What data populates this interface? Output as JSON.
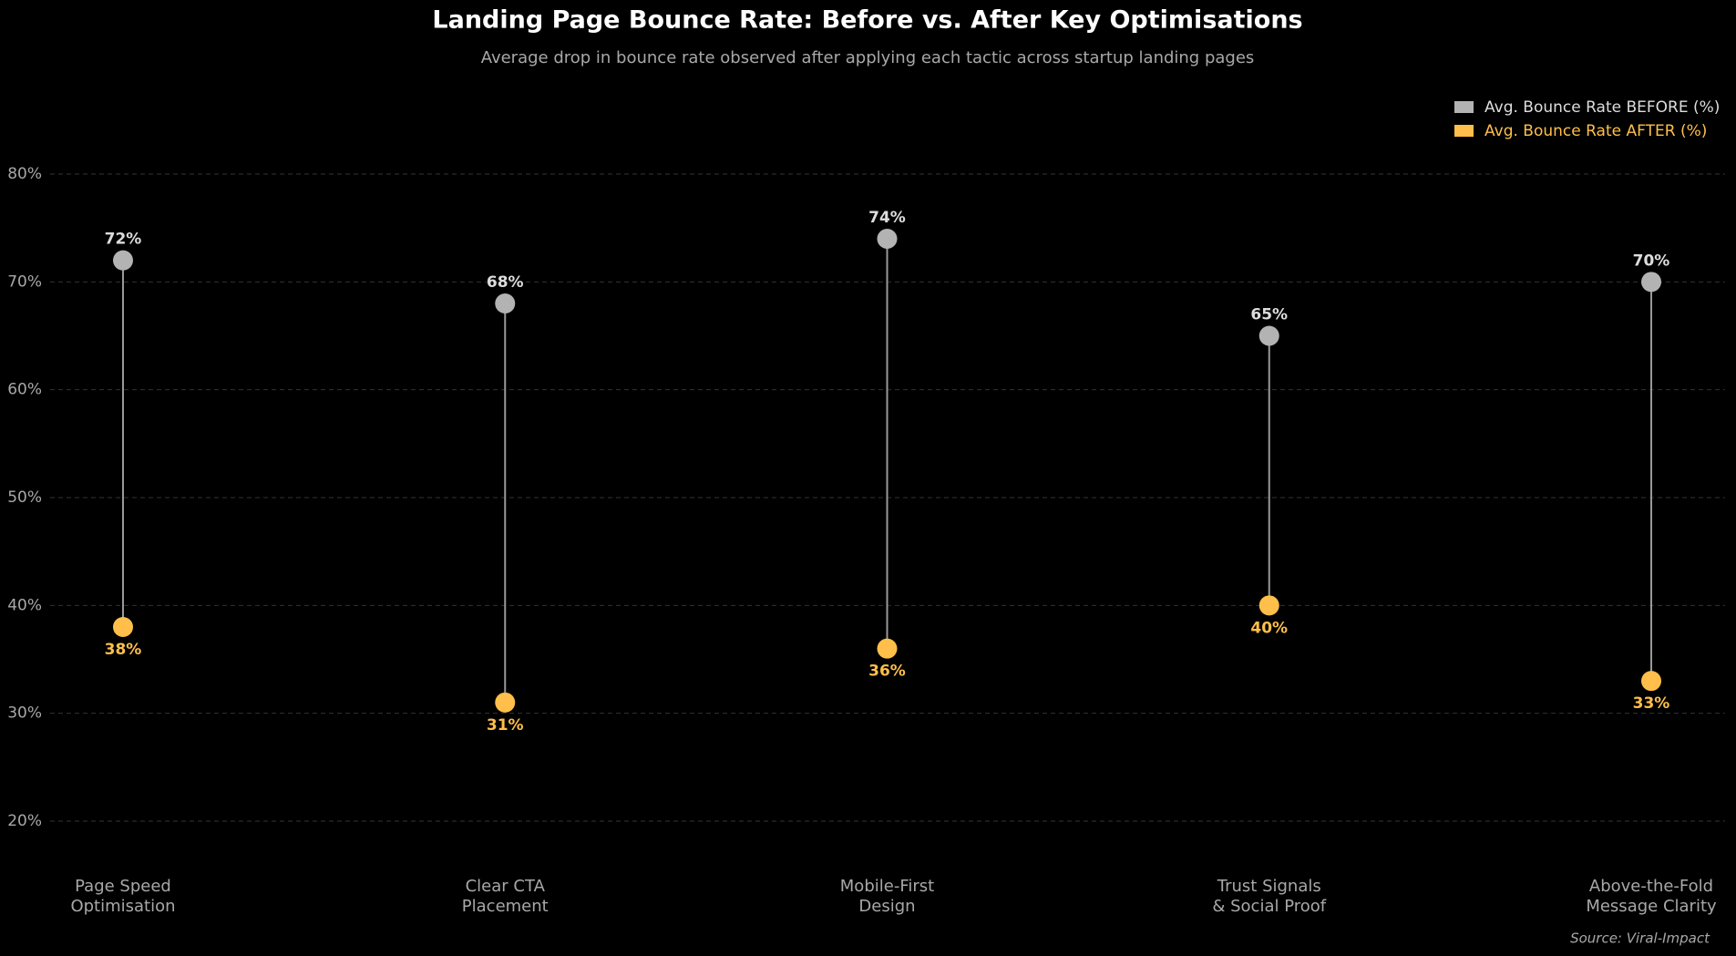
{
  "chart_data": {
    "type": "dumbbell",
    "title": "Landing Page Bounce Rate: Before vs. After Key Optimisations",
    "subtitle": "Average drop in bounce rate observed after applying each tactic across startup landing pages",
    "source": "Source: Viral-Impact",
    "categories": [
      "Page Speed\nOptimisation",
      "Clear CTA\nPlacement",
      "Mobile-First\nDesign",
      "Trust Signals\n& Social Proof",
      "Above-the-Fold\nMessage Clarity"
    ],
    "series": [
      {
        "name": "Avg. Bounce Rate BEFORE (%)",
        "color": "#b3b3b3",
        "values": [
          72,
          68,
          74,
          65,
          70
        ],
        "value_labels": [
          "72%",
          "68%",
          "74%",
          "65%",
          "70%"
        ]
      },
      {
        "name": "Avg. Bounce Rate AFTER (%)",
        "color": "#ffbf4a",
        "values": [
          38,
          31,
          36,
          40,
          33
        ],
        "value_labels": [
          "38%",
          "31%",
          "36%",
          "40%",
          "33%"
        ]
      }
    ],
    "ylim": [
      17,
      83
    ],
    "yticks": [
      {
        "value": 20,
        "label": "20%"
      },
      {
        "value": 30,
        "label": "30%"
      },
      {
        "value": 40,
        "label": "40%"
      },
      {
        "value": 50,
        "label": "50%"
      },
      {
        "value": 60,
        "label": "60%"
      },
      {
        "value": 70,
        "label": "70%"
      },
      {
        "value": 80,
        "label": "80%"
      }
    ],
    "grid": true,
    "legend": "upper right"
  }
}
